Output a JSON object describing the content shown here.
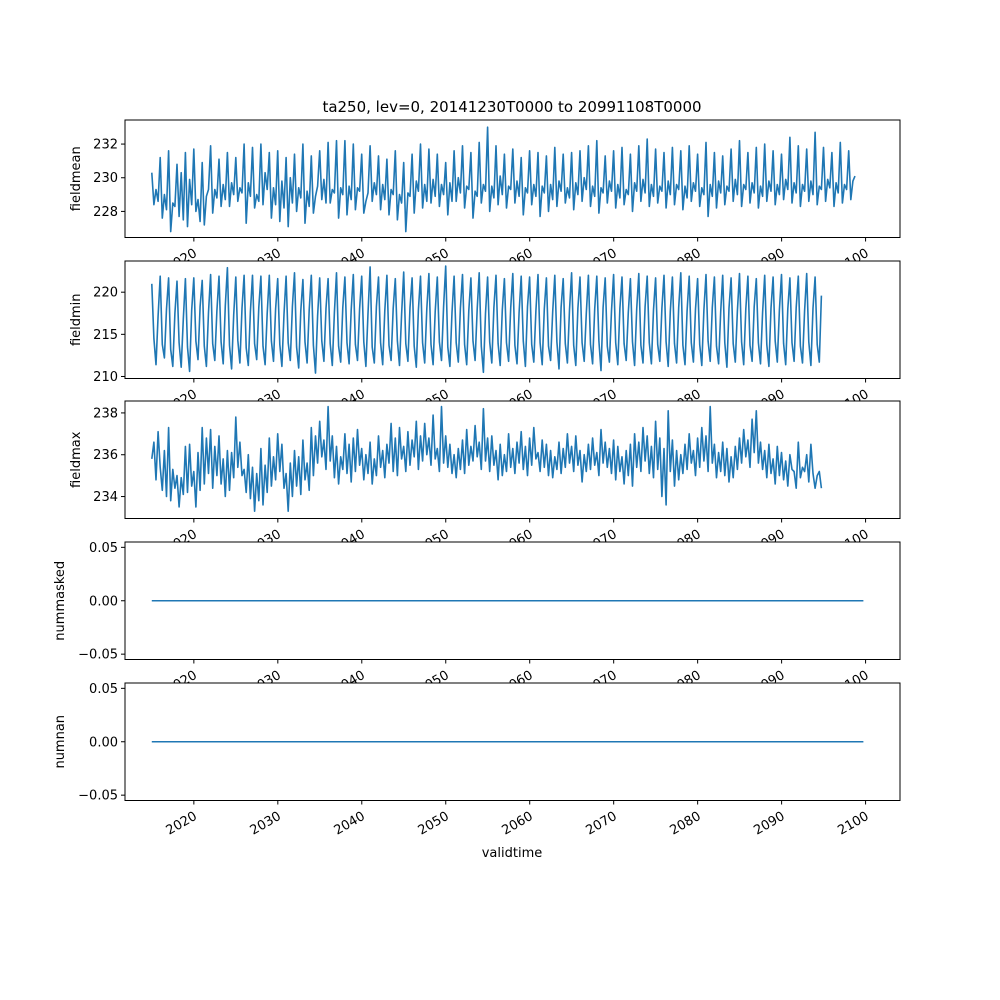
{
  "chart_data": {
    "type": "line",
    "title": "ta250, lev=0, 20141230T0000 to 20991108T0000",
    "xlabel": "validtime",
    "x_start": 2014.99,
    "x_step": 0.25,
    "xlim": [
      2011.8,
      2104.1
    ],
    "xticks": [
      2020,
      2030,
      2040,
      2050,
      2060,
      2070,
      2080,
      2090,
      2100
    ],
    "xtick_labels": [
      "2020",
      "2030",
      "2040",
      "2050",
      "2060",
      "2070",
      "2080",
      "2090",
      "2100"
    ],
    "color": "#1f77b4",
    "grid": false,
    "panels": [
      {
        "ylabel": "fieldmean",
        "ylim": [
          226.45,
          233.43
        ],
        "yticks": [
          228,
          230,
          232
        ],
        "ytick_labels": [
          "228",
          "230",
          "232"
        ],
        "values": [
          230.3,
          228.4,
          229.3,
          228.6,
          231.2,
          227.6,
          229.0,
          228.1,
          231.6,
          226.8,
          228.5,
          228.3,
          230.8,
          227.7,
          230.3,
          227.5,
          231.5,
          227.1,
          229.9,
          228.4,
          231.7,
          228.0,
          228.7,
          227.4,
          230.9,
          227.2,
          228.9,
          229.3,
          231.9,
          227.9,
          229.3,
          228.8,
          231.1,
          228.3,
          229.6,
          228.7,
          231.5,
          228.3,
          229.7,
          229.0,
          231.2,
          228.6,
          229.4,
          229.1,
          232.0,
          227.3,
          229.7,
          228.9,
          231.8,
          228.2,
          229.0,
          228.6,
          232.0,
          228.4,
          230.3,
          229.3,
          231.5,
          227.6,
          229.4,
          228.4,
          231.6,
          227.4,
          229.8,
          228.2,
          231.2,
          227.1,
          230.0,
          228.5,
          231.4,
          228.0,
          229.4,
          228.8,
          232.0,
          227.3,
          229.2,
          228.3,
          231.3,
          227.9,
          228.9,
          229.5,
          231.6,
          228.7,
          229.9,
          228.5,
          232.1,
          228.5,
          229.3,
          229.1,
          232.2,
          227.6,
          229.4,
          229.0,
          232.2,
          227.8,
          229.5,
          228.7,
          232.0,
          228.1,
          229.4,
          229.2,
          231.4,
          227.9,
          228.6,
          229.1,
          231.9,
          228.6,
          229.7,
          229.0,
          231.3,
          228.1,
          229.6,
          228.7,
          231.1,
          227.8,
          229.3,
          229.0,
          231.6,
          227.5,
          229.0,
          228.5,
          230.9,
          226.8,
          229.1,
          228.9,
          231.4,
          227.9,
          229.8,
          229.2,
          232.0,
          228.2,
          229.6,
          228.6,
          231.7,
          228.5,
          229.9,
          228.9,
          231.4,
          228.3,
          229.6,
          229.0,
          230.9,
          227.8,
          229.7,
          228.6,
          231.6,
          228.6,
          230.0,
          229.1,
          231.9,
          228.2,
          229.5,
          229.3,
          231.5,
          227.6,
          229.2,
          228.9,
          232.1,
          228.5,
          229.6,
          229.2,
          233.0,
          228.0,
          229.5,
          228.8,
          231.9,
          228.4,
          230.1,
          229.0,
          231.4,
          228.2,
          229.5,
          229.3,
          231.7,
          228.5,
          229.8,
          228.9,
          231.2,
          227.8,
          229.4,
          229.1,
          231.6,
          228.4,
          229.6,
          228.9,
          231.5,
          227.7,
          229.5,
          229.1,
          231.3,
          228.0,
          229.6,
          228.7,
          231.8,
          228.3,
          229.8,
          229.2,
          231.4,
          228.5,
          229.4,
          228.8,
          231.5,
          228.1,
          229.7,
          229.0,
          231.6,
          228.6,
          230.0,
          229.3,
          231.9,
          228.3,
          229.5,
          228.9,
          232.2,
          227.9,
          229.4,
          229.1,
          231.3,
          228.5,
          229.8,
          229.2,
          231.6,
          228.2,
          229.6,
          228.8,
          231.8,
          228.4,
          229.3,
          229.0,
          231.4,
          228.0,
          229.7,
          229.2,
          231.9,
          228.6,
          229.9,
          229.1,
          232.3,
          228.3,
          229.6,
          228.9,
          231.7,
          228.5,
          229.5,
          229.2,
          231.5,
          228.2,
          229.8,
          229.0,
          231.8,
          228.4,
          229.6,
          229.3,
          231.6,
          228.1,
          229.5,
          228.8,
          231.9,
          228.6,
          229.7,
          229.2,
          231.4,
          228.3,
          229.4,
          229.0,
          232.1,
          227.7,
          229.6,
          228.9,
          231.5,
          228.2,
          229.8,
          229.1,
          231.3,
          228.4,
          229.5,
          229.2,
          231.7,
          228.6,
          229.9,
          229.0,
          232.2,
          228.3,
          229.6,
          229.3,
          231.5,
          228.5,
          229.7,
          229.1,
          231.8,
          228.2,
          229.5,
          228.9,
          232.0,
          228.6,
          229.8,
          229.2,
          231.6,
          228.4,
          229.6,
          229.0,
          231.4,
          228.7,
          229.9,
          229.3,
          232.4,
          228.5,
          229.7,
          229.1,
          231.9,
          228.3,
          229.6,
          229.2,
          231.7,
          228.6,
          229.8,
          229.0,
          232.7,
          228.4,
          229.5,
          229.3,
          231.8,
          228.6,
          229.9,
          229.4,
          231.5,
          228.3,
          229.7,
          229.1,
          232.1,
          228.5,
          229.6,
          229.3,
          231.6,
          228.7,
          229.8,
          230.1
        ]
      },
      {
        "ylabel": "fieldmin",
        "ylim": [
          209.76,
          223.7
        ],
        "yticks": [
          210,
          215,
          220
        ],
        "ytick_labels": [
          "210",
          "215",
          "220"
        ],
        "values": [
          221.0,
          214.5,
          211.4,
          217.2,
          221.9,
          213.8,
          212.2,
          218.0,
          221.7,
          213.2,
          211.2,
          217.5,
          221.3,
          214.0,
          211.1,
          216.8,
          221.6,
          213.5,
          210.6,
          217.9,
          221.7,
          214.2,
          212.0,
          218.3,
          221.4,
          213.6,
          211.2,
          217.6,
          222.1,
          213.9,
          211.9,
          217.8,
          221.9,
          214.1,
          211.5,
          218.4,
          222.9,
          213.7,
          210.9,
          217.3,
          221.8,
          214.3,
          211.6,
          218.1,
          222.0,
          213.4,
          211.3,
          217.7,
          222.0,
          213.9,
          212.0,
          218.2,
          221.9,
          213.6,
          211.4,
          217.5,
          222.0,
          214.2,
          211.8,
          218.0,
          221.6,
          213.8,
          211.2,
          217.4,
          221.9,
          214.0,
          211.9,
          218.3,
          222.3,
          213.5,
          211.0,
          217.8,
          221.5,
          214.1,
          211.6,
          217.9,
          222.0,
          213.7,
          210.4,
          217.2,
          221.7,
          214.2,
          211.8,
          218.1,
          221.6,
          213.9,
          211.3,
          217.6,
          222.3,
          213.6,
          211.7,
          218.2,
          221.8,
          214.0,
          211.5,
          217.9,
          222.1,
          213.8,
          211.9,
          218.0,
          221.9,
          214.1,
          211.2,
          217.5,
          223.0,
          213.5,
          211.6,
          218.3,
          221.8,
          214.0,
          211.4,
          217.8,
          222.0,
          213.7,
          211.9,
          218.1,
          221.6,
          214.2,
          211.3,
          217.4,
          222.4,
          213.9,
          211.8,
          218.2,
          221.7,
          213.6,
          211.1,
          217.9,
          221.9,
          214.0,
          211.6,
          218.0,
          222.2,
          213.8,
          211.4,
          217.7,
          221.8,
          214.1,
          211.9,
          218.3,
          223.1,
          213.5,
          211.2,
          217.6,
          221.9,
          214.0,
          211.7,
          218.1,
          222.1,
          213.8,
          211.4,
          217.8,
          221.7,
          214.2,
          211.9,
          218.0,
          222.3,
          213.6,
          210.5,
          217.5,
          221.8,
          214.1,
          211.6,
          218.2,
          222.0,
          213.9,
          211.3,
          217.9,
          221.6,
          214.0,
          211.8,
          218.1,
          222.2,
          213.7,
          211.5,
          217.6,
          221.9,
          214.2,
          211.2,
          218.3,
          221.8,
          213.8,
          211.7,
          217.8,
          222.1,
          214.0,
          211.4,
          218.0,
          221.7,
          213.6,
          211.9,
          217.7,
          222.0,
          214.1,
          210.9,
          218.2,
          221.6,
          213.9,
          211.6,
          217.9,
          222.3,
          213.7,
          211.3,
          218.1,
          221.8,
          214.0,
          211.8,
          217.5,
          222.0,
          213.8,
          211.5,
          218.0,
          221.9,
          214.2,
          210.7,
          218.2,
          221.7,
          213.6,
          211.7,
          217.8,
          222.1,
          214.0,
          211.4,
          218.1,
          221.8,
          213.9,
          211.9,
          217.6,
          221.6,
          214.1,
          211.3,
          218.0,
          222.2,
          213.7,
          211.6,
          218.3,
          221.9,
          214.0,
          211.5,
          217.9,
          221.7,
          213.8,
          211.8,
          218.1,
          222.0,
          214.1,
          211.2,
          217.7,
          221.8,
          213.9,
          211.6,
          218.2,
          222.3,
          213.7,
          211.4,
          217.8,
          221.9,
          214.0,
          211.7,
          218.0,
          221.6,
          213.8,
          211.3,
          217.9,
          222.1,
          214.2,
          211.8,
          218.2,
          221.8,
          213.6,
          211.5,
          217.7,
          222.0,
          214.0,
          211.1,
          218.1,
          221.7,
          213.9,
          211.7,
          217.8,
          222.2,
          214.1,
          211.4,
          218.0,
          221.9,
          213.7,
          211.8,
          218.3,
          221.6,
          214.0,
          211.5,
          217.6,
          222.0,
          213.8,
          211.2,
          218.1,
          221.8,
          214.2,
          211.7,
          217.9,
          222.1,
          213.9,
          211.4,
          218.0,
          221.7,
          214.0,
          211.8,
          218.2,
          221.9,
          213.6,
          211.6,
          217.8,
          222.2,
          214.1,
          211.3,
          218.1,
          221.8,
          213.8,
          211.7,
          219.6
        ]
      },
      {
        "ylabel": "fieldmax",
        "ylim": [
          232.95,
          238.57
        ],
        "yticks": [
          234,
          236,
          238
        ],
        "ytick_labels": [
          "234",
          "236",
          "238"
        ],
        "values": [
          235.8,
          236.6,
          234.8,
          237.1,
          235.4,
          234.3,
          236.2,
          234.0,
          237.3,
          233.8,
          235.3,
          234.4,
          235.0,
          233.5,
          234.9,
          234.1,
          236.4,
          234.2,
          236.5,
          234.5,
          235.2,
          233.5,
          236.1,
          234.3,
          237.3,
          234.6,
          236.8,
          235.1,
          237.2,
          234.4,
          236.4,
          235.0,
          236.9,
          234.6,
          235.8,
          234.0,
          236.2,
          234.3,
          236.1,
          234.9,
          237.8,
          235.4,
          236.6,
          235.0,
          235.3,
          234.2,
          236.0,
          233.9,
          235.4,
          233.3,
          235.1,
          233.8,
          236.3,
          233.6,
          235.5,
          234.2,
          236.8,
          234.5,
          235.9,
          234.8,
          237.0,
          235.2,
          236.5,
          234.4,
          235.1,
          233.3,
          235.6,
          234.0,
          236.2,
          234.5,
          235.9,
          234.1,
          236.7,
          234.8,
          235.6,
          234.3,
          237.3,
          235.0,
          236.9,
          235.6,
          237.6,
          235.9,
          236.7,
          235.3,
          238.3,
          235.7,
          236.9,
          234.9,
          236.4,
          234.6,
          235.9,
          235.3,
          237.0,
          235.1,
          236.5,
          234.7,
          236.8,
          235.2,
          237.2,
          235.5,
          236.3,
          234.8,
          236.0,
          235.1,
          236.6,
          234.6,
          235.8,
          235.0,
          236.9,
          235.4,
          236.2,
          234.9,
          236.5,
          235.6,
          237.5,
          235.2,
          236.8,
          235.0,
          237.3,
          235.8,
          236.4,
          235.2,
          237.1,
          235.5,
          236.7,
          235.9,
          237.6,
          235.3,
          236.9,
          235.7,
          237.5,
          236.0,
          236.8,
          235.5,
          237.9,
          235.8,
          236.3,
          235.2,
          238.3,
          235.6,
          236.9,
          235.4,
          236.5,
          235.1,
          236.0,
          234.9,
          236.3,
          235.3,
          236.7,
          235.1,
          237.2,
          235.5,
          236.4,
          235.7,
          237.4,
          235.9,
          236.6,
          235.3,
          238.2,
          235.7,
          236.8,
          235.2,
          236.9,
          235.5,
          236.2,
          234.8,
          236.5,
          235.0,
          236.0,
          235.2,
          237.0,
          235.4,
          236.3,
          235.1,
          236.6,
          235.6,
          237.1,
          235.3,
          236.4,
          235.0,
          236.8,
          235.5,
          237.3,
          235.8,
          236.1,
          235.2,
          236.7,
          235.4,
          236.5,
          235.0,
          236.2,
          234.9,
          235.9,
          235.3,
          236.6,
          235.1,
          236.3,
          235.4,
          237.0,
          235.6,
          236.4,
          235.2,
          236.9,
          235.5,
          236.2,
          234.7,
          236.0,
          235.2,
          236.5,
          235.3,
          236.8,
          235.5,
          236.1,
          235.0,
          237.2,
          235.6,
          236.6,
          235.4,
          236.3,
          235.1,
          236.7,
          234.8,
          236.4,
          235.2,
          235.9,
          234.6,
          236.2,
          235.0,
          236.5,
          234.5,
          237.0,
          235.4,
          236.6,
          235.2,
          237.3,
          235.7,
          236.9,
          235.1,
          236.4,
          234.9,
          237.6,
          235.3,
          236.8,
          234.0,
          236.3,
          233.6,
          238.1,
          235.2,
          236.7,
          234.5,
          236.2,
          234.8,
          236.0,
          235.1,
          236.5,
          235.3,
          237.0,
          235.6,
          236.2,
          235.0,
          236.8,
          235.4,
          237.3,
          235.7,
          236.9,
          235.2,
          238.3,
          235.6,
          236.5,
          234.9,
          236.1,
          235.2,
          236.6,
          235.0,
          236.3,
          234.7,
          235.9,
          234.9,
          236.4,
          235.3,
          236.8,
          235.6,
          237.2,
          235.9,
          236.7,
          235.4,
          237.7,
          236.1,
          238.1,
          235.6,
          236.6,
          235.3,
          236.2,
          234.9,
          236.5,
          235.1,
          235.8,
          234.6,
          236.4,
          235.0,
          236.1,
          234.8,
          235.7,
          234.5,
          236.0,
          235.3,
          235.2,
          234.4,
          236.6,
          234.9,
          235.4,
          235.2,
          236.0,
          234.7,
          236.5,
          235.1,
          234.4,
          235.0,
          235.2,
          234.4
        ]
      },
      {
        "ylabel": "nummasked",
        "ylim": [
          -0.055,
          0.055
        ],
        "yticks": [
          -0.05,
          0.0,
          0.05
        ],
        "ytick_labels": [
          "−0.05",
          "0.00",
          "0.05"
        ],
        "constant_value": 0
      },
      {
        "ylabel": "numnan",
        "ylim": [
          -0.055,
          0.055
        ],
        "yticks": [
          -0.05,
          0.0,
          0.05
        ],
        "ytick_labels": [
          "−0.05",
          "0.00",
          "0.05"
        ],
        "constant_value": 0
      }
    ]
  }
}
